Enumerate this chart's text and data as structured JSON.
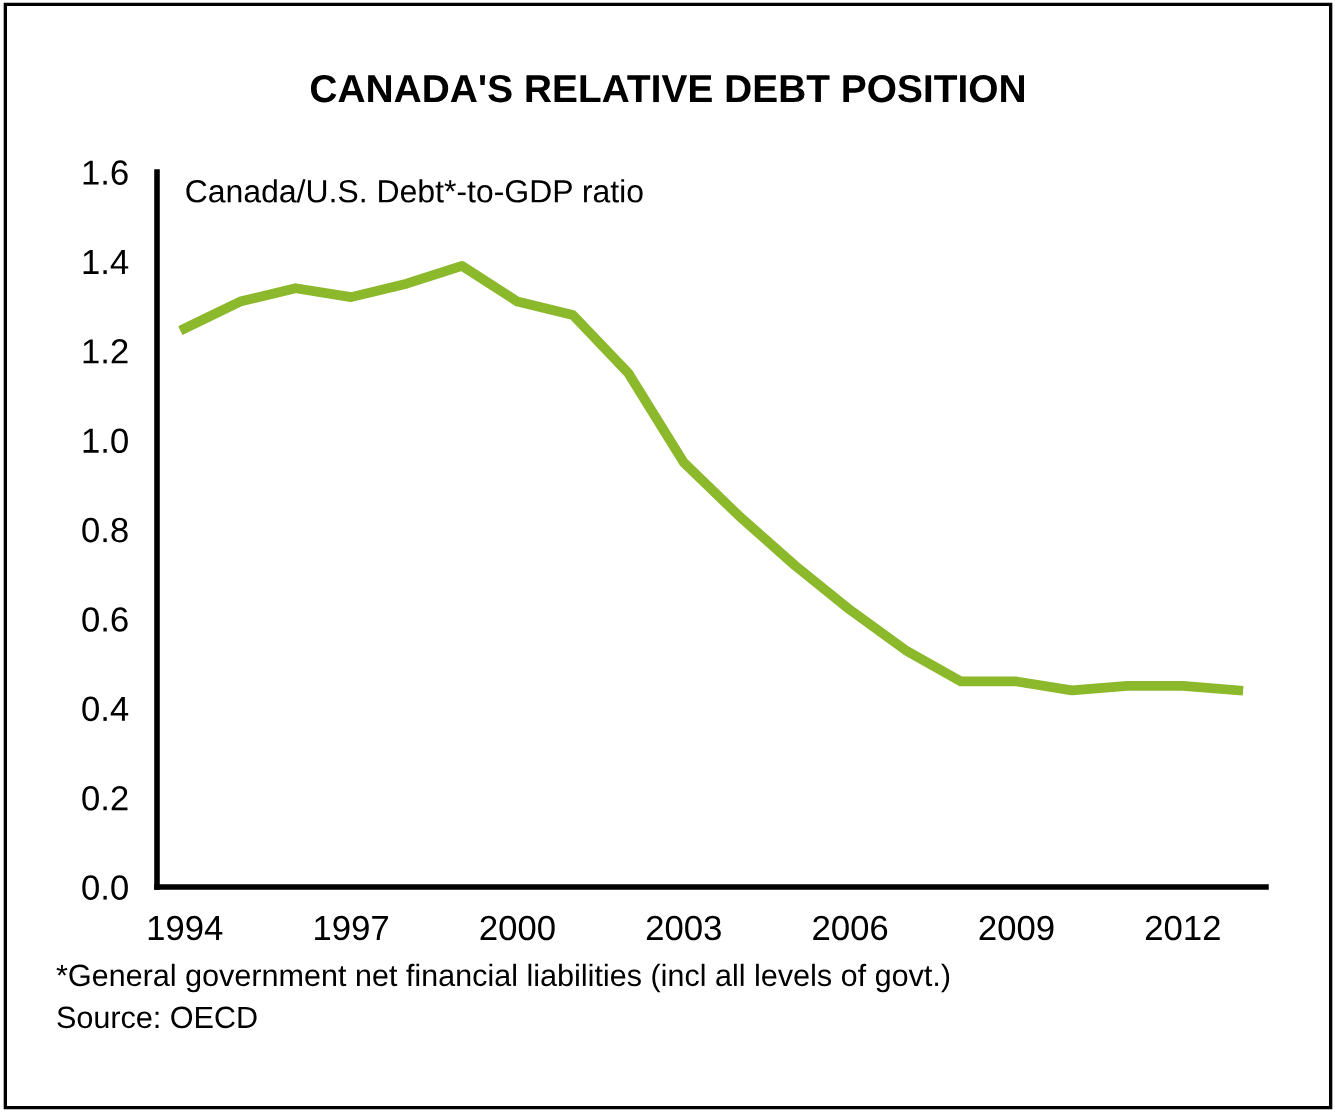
{
  "chart_data": {
    "type": "line",
    "title": "CANADA'S RELATIVE DEBT POSITION",
    "ylabel": "Canada/U.S. Debt*-to-GDP ratio",
    "x": [
      1994,
      1995,
      1996,
      1997,
      1998,
      1999,
      2000,
      2001,
      2002,
      2003,
      2004,
      2005,
      2006,
      2007,
      2008,
      2009,
      2010,
      2011,
      2012,
      2013
    ],
    "series": [
      {
        "color": "#8cb82b",
        "values": [
          1.25,
          1.31,
          1.34,
          1.32,
          1.35,
          1.39,
          1.31,
          1.28,
          1.15,
          0.95,
          0.83,
          0.72,
          0.62,
          0.53,
          0.46,
          0.46,
          0.44,
          0.45,
          0.45,
          0.44
        ]
      }
    ],
    "xlim": [
      1993.5,
      2013.5
    ],
    "xticks": [
      1994,
      1997,
      2000,
      2003,
      2006,
      2009,
      2012
    ],
    "ylim": [
      0,
      1.6
    ],
    "yticks": [
      {
        "value": 0,
        "label": "0.0"
      },
      {
        "value": 0.2,
        "label": "0.2"
      },
      {
        "value": 0.4,
        "label": "0.4"
      },
      {
        "value": 0.6,
        "label": "0.6"
      },
      {
        "value": 0.8,
        "label": "0.8"
      },
      {
        "value": 1.0,
        "label": "1.0"
      },
      {
        "value": 1.2,
        "label": "1.2"
      },
      {
        "value": 1.4,
        "label": "1.4"
      },
      {
        "value": 1.6,
        "label": "1.6"
      }
    ],
    "grid": false,
    "legend": false,
    "marker": "none",
    "line_style": "solid",
    "annotations": [
      "*General government net financial liabilities (incl all levels of govt.)",
      "Source: OECD"
    ]
  }
}
